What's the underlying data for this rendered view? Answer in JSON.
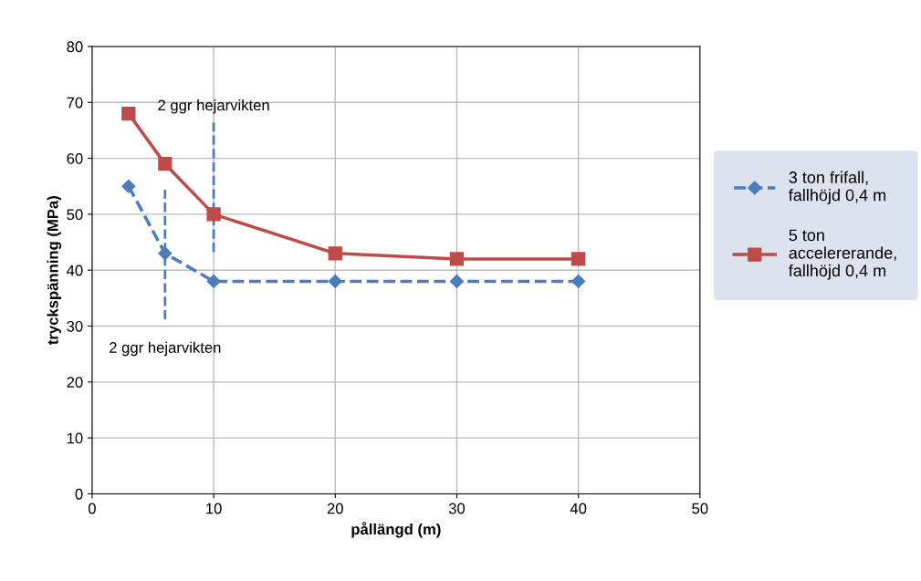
{
  "chart_data": {
    "type": "line",
    "xlabel": "pållängd (m)",
    "ylabel": "tryckspänning (MPa)",
    "xlim": [
      0,
      50
    ],
    "xticks": [
      0,
      10,
      20,
      30,
      40,
      50
    ],
    "ylim": [
      0,
      80
    ],
    "yticks": [
      0,
      10,
      20,
      30,
      40,
      50,
      60,
      70,
      80
    ],
    "grid": true,
    "legend": "right",
    "series": [
      {
        "name": "3 ton frifall,\nfallhöjd 0,4 m",
        "color": "#4a7ebb",
        "x": [
          3,
          6,
          10,
          20,
          30,
          40
        ],
        "values": [
          55,
          43,
          38,
          38,
          38,
          38
        ],
        "marker": "diamond",
        "line_style": "dashed"
      },
      {
        "name": "5 ton\naccelererande,\nfallhöjd 0,4 m",
        "color": "#be4b48",
        "x": [
          3,
          6,
          10,
          20,
          30,
          40
        ],
        "values": [
          68,
          59,
          50,
          43,
          42,
          42
        ],
        "marker": "square",
        "line_style": "solid"
      }
    ],
    "ref_lines": [
      {
        "axis": "x",
        "value": 6,
        "label": "2 ggr hejarvikten",
        "color": "#4a7ebb",
        "line_style": "dashed"
      },
      {
        "axis": "x",
        "value": 10,
        "label": "2 ggr hejarvikten",
        "color": "#4a7ebb",
        "line_style": "dashed"
      }
    ]
  }
}
